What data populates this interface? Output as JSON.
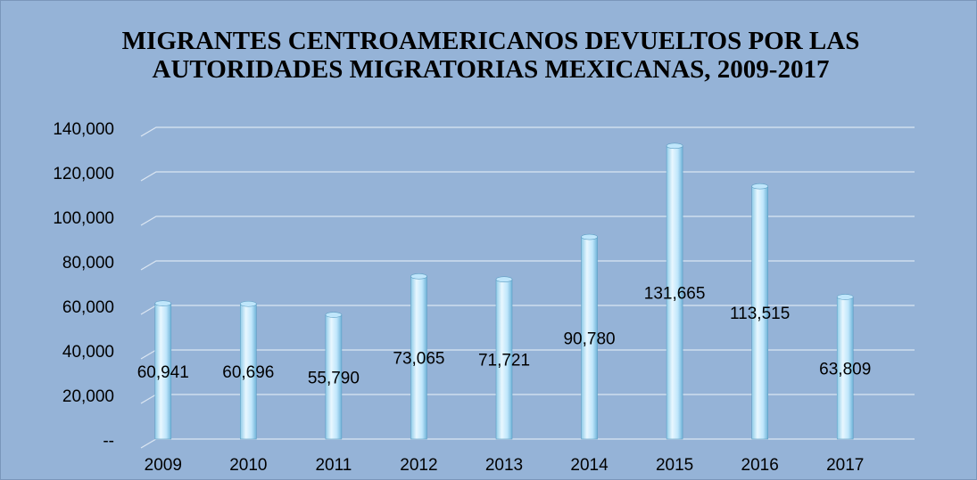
{
  "chart_data": {
    "type": "bar",
    "title": "MIGRANTES CENTROAMERICANOS DEVUELTOS POR LAS AUTORIDADES MIGRATORIAS MEXICANAS, 2009-2017",
    "categories": [
      "2009",
      "2010",
      "2011",
      "2012",
      "2013",
      "2014",
      "2015",
      "2016",
      "2017"
    ],
    "values": [
      60941,
      60696,
      55790,
      73065,
      71721,
      90780,
      131665,
      113515,
      63809
    ],
    "value_labels": [
      "60,941",
      "60,696",
      "55,790",
      "73,065",
      "71,721",
      "90,780",
      "131,665",
      "113,515",
      "63,809"
    ],
    "color": "#bfe6fb",
    "ylim": [
      0,
      140000
    ],
    "yticks": [
      {
        "value": 0,
        "label": "--"
      },
      {
        "value": 20000,
        "label": "20,000"
      },
      {
        "value": 40000,
        "label": "40,000"
      },
      {
        "value": 60000,
        "label": "60,000"
      },
      {
        "value": 80000,
        "label": "80,000"
      },
      {
        "value": 100000,
        "label": "100,000"
      },
      {
        "value": 120000,
        "label": "120,000"
      },
      {
        "value": 140000,
        "label": "140,000"
      }
    ],
    "grid": true
  }
}
